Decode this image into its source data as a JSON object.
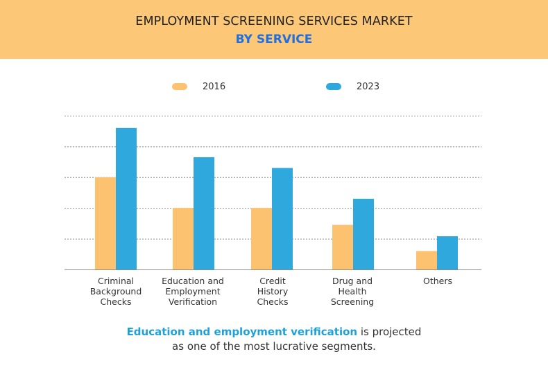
{
  "header": {
    "title": "EMPLOYMENT SCREENING SERVICES MARKET",
    "subtitle": "BY SERVICE"
  },
  "colors": {
    "header_bg": "#fcc877",
    "series_2016": "#fcc26f",
    "series_2023": "#2fa8de",
    "subtitle": "#1f6fe0",
    "highlight": "#1fa0d8"
  },
  "caption": {
    "highlight": "Education and employment verification",
    "rest_line1": " is projected",
    "line2": "as one of the most lucrative segments."
  },
  "chart_data": {
    "type": "bar",
    "title": "EMPLOYMENT SCREENING SERVICES MARKET",
    "subtitle": "BY SERVICE",
    "categories": [
      "Criminal Background Checks",
      "Education and Employment Verification",
      "Credit History Checks",
      "Drug and Health Screening",
      "Others"
    ],
    "category_lines": [
      [
        "Criminal",
        "Background",
        "Checks"
      ],
      [
        "Education and",
        "Employment",
        "Verification"
      ],
      [
        "Credit",
        "History",
        "Checks"
      ],
      [
        "Drug and",
        "Health",
        "Screening"
      ],
      [
        "Others"
      ]
    ],
    "series": [
      {
        "name": "2016",
        "values": [
          3.0,
          2.0,
          2.0,
          1.45,
          0.6
        ]
      },
      {
        "name": "2023",
        "values": [
          4.6,
          3.65,
          3.3,
          2.3,
          1.08
        ]
      }
    ],
    "ylim": [
      0,
      5
    ],
    "yticks": [
      0,
      1,
      2,
      3,
      4,
      5
    ],
    "grid": true,
    "legend_position": "top-center",
    "xlabel": "",
    "ylabel": ""
  }
}
